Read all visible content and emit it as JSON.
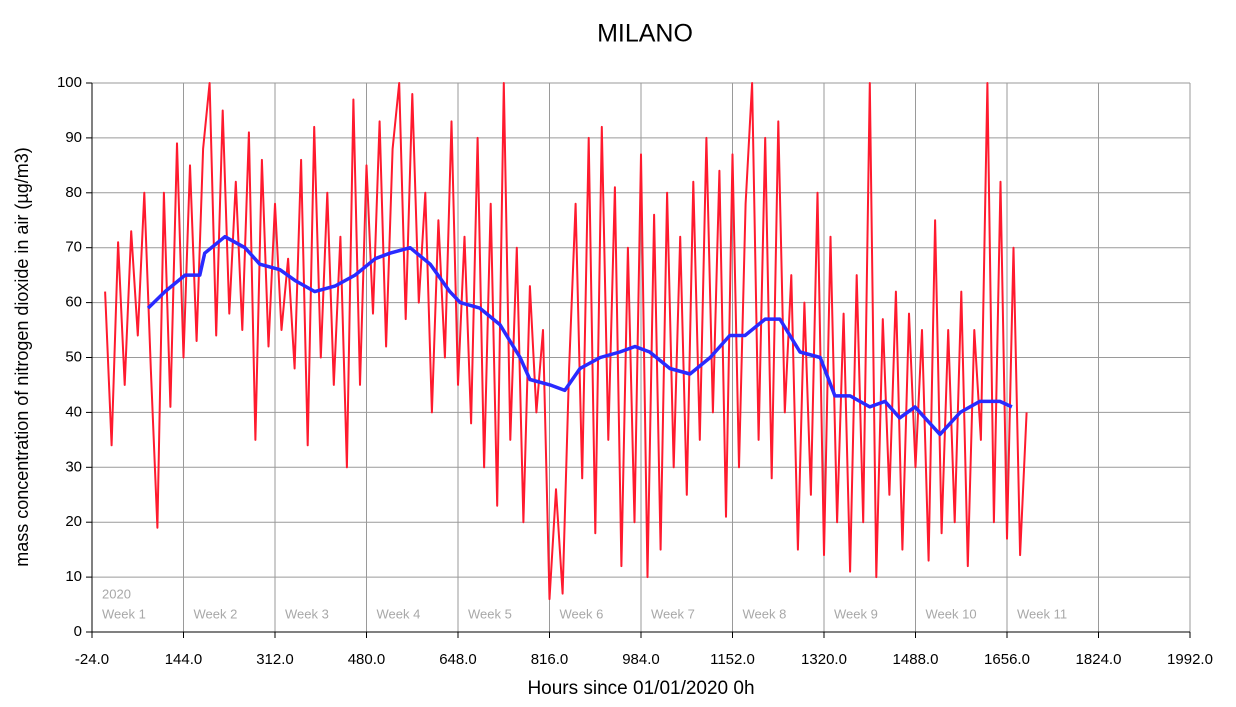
{
  "chart_data": {
    "type": "line",
    "title": "MILANO",
    "x_label": "Hours since 01/01/2020  0h",
    "y_label": "mass concentration of nitrogen dioxide in air (µg/m3)",
    "year_label": "2020",
    "week_labels": [
      "Week 1",
      "Week 2",
      "Week 3",
      "Week 4",
      "Week 5",
      "Week 6",
      "Week 7",
      "Week 8",
      "Week 9",
      "Week 10",
      "Week 11"
    ],
    "xlim": [
      -24,
      1992
    ],
    "ylim": [
      0,
      100
    ],
    "xticks": [
      {
        "value": -24,
        "label": "-24.0"
      },
      {
        "value": 144,
        "label": "144.0"
      },
      {
        "value": 312,
        "label": "312.0"
      },
      {
        "value": 480,
        "label": "480.0"
      },
      {
        "value": 648,
        "label": "648.0"
      },
      {
        "value": 816,
        "label": "816.0"
      },
      {
        "value": 984,
        "label": "984.0"
      },
      {
        "value": 1152,
        "label": "1152.0"
      },
      {
        "value": 1320,
        "label": "1320.0"
      },
      {
        "value": 1488,
        "label": "1488.0"
      },
      {
        "value": 1656,
        "label": "1656.0"
      },
      {
        "value": 1824,
        "label": "1824.0"
      },
      {
        "value": 1992,
        "label": "1992.0"
      }
    ],
    "yticks": [
      0,
      10,
      20,
      30,
      40,
      50,
      60,
      70,
      80,
      90,
      100
    ],
    "grid": true,
    "series": [
      {
        "color": "#ff1a2e",
        "x": [
          0,
          12,
          24,
          36,
          48,
          60,
          72,
          84,
          96,
          108,
          120,
          132,
          144,
          156,
          168,
          180,
          192,
          204,
          216,
          228,
          240,
          252,
          264,
          276,
          288,
          300,
          312,
          324,
          336,
          348,
          360,
          372,
          384,
          396,
          408,
          420,
          432,
          444,
          456,
          468,
          480,
          492,
          504,
          516,
          528,
          540,
          552,
          564,
          576,
          588,
          600,
          612,
          624,
          636,
          648,
          660,
          672,
          684,
          696,
          708,
          720,
          732,
          744,
          756,
          768,
          780,
          792,
          804,
          816,
          828,
          840,
          852,
          864,
          876,
          888,
          900,
          912,
          924,
          936,
          948,
          960,
          972,
          984,
          996,
          1008,
          1020,
          1032,
          1044,
          1056,
          1068,
          1080,
          1092,
          1104,
          1116,
          1128,
          1140,
          1152,
          1164,
          1176,
          1188,
          1200,
          1212,
          1224,
          1236,
          1248,
          1260,
          1272,
          1284,
          1296,
          1308,
          1320,
          1332,
          1344,
          1356,
          1368,
          1380,
          1392,
          1404,
          1416,
          1428,
          1440,
          1452,
          1464,
          1476,
          1488,
          1500,
          1512,
          1524,
          1536,
          1548,
          1560,
          1572,
          1584,
          1596,
          1608,
          1620,
          1632,
          1644,
          1656,
          1668,
          1680,
          1692
        ],
        "values": [
          62,
          34,
          71,
          45,
          73,
          54,
          80,
          48,
          19,
          80,
          41,
          89,
          50,
          85,
          53,
          88,
          100,
          54,
          95,
          58,
          82,
          55,
          91,
          35,
          86,
          52,
          78,
          55,
          68,
          48,
          86,
          34,
          92,
          50,
          80,
          45,
          72,
          30,
          97,
          45,
          85,
          58,
          93,
          52,
          88,
          100,
          57,
          98,
          60,
          80,
          40,
          75,
          50,
          93,
          45,
          72,
          38,
          90,
          30,
          78,
          23,
          100,
          35,
          70,
          20,
          63,
          40,
          55,
          6,
          26,
          7,
          48,
          78,
          28,
          90,
          18,
          92,
          35,
          81,
          12,
          70,
          20,
          87,
          10,
          76,
          15,
          80,
          30,
          72,
          25,
          82,
          35,
          90,
          40,
          84,
          21,
          87,
          30,
          78,
          100,
          35,
          90,
          28,
          93,
          40,
          65,
          15,
          60,
          25,
          80,
          14,
          72,
          20,
          58,
          11,
          65,
          20,
          100,
          10,
          57,
          25,
          62,
          15,
          58,
          30,
          55,
          13,
          75,
          18,
          55,
          20,
          62,
          12,
          55,
          35,
          100,
          20,
          82,
          17,
          70,
          14,
          40
        ]
      },
      {
        "color": "#2a2aff",
        "x": [
          79,
          110,
          147,
          174,
          183,
          220,
          257,
          284,
          321,
          349,
          385,
          422,
          459,
          496,
          523,
          560,
          597,
          633,
          652,
          688,
          725,
          762,
          780,
          817,
          844,
          872,
          909,
          945,
          973,
          1000,
          1037,
          1074,
          1111,
          1147,
          1175,
          1212,
          1239,
          1276,
          1313,
          1340,
          1368,
          1404,
          1432,
          1459,
          1487,
          1533,
          1570,
          1606,
          1643,
          1665
        ],
        "values": [
          59,
          62,
          65,
          65,
          69,
          72,
          70,
          67,
          66,
          64,
          62,
          63,
          65,
          68,
          69,
          70,
          67,
          62,
          60,
          59,
          56,
          50,
          46,
          45,
          44,
          48,
          50,
          51,
          52,
          51,
          48,
          47,
          50,
          54,
          54,
          57,
          57,
          51,
          50,
          43,
          43,
          41,
          42,
          39,
          41,
          36,
          40,
          42,
          42,
          41
        ]
      }
    ]
  }
}
